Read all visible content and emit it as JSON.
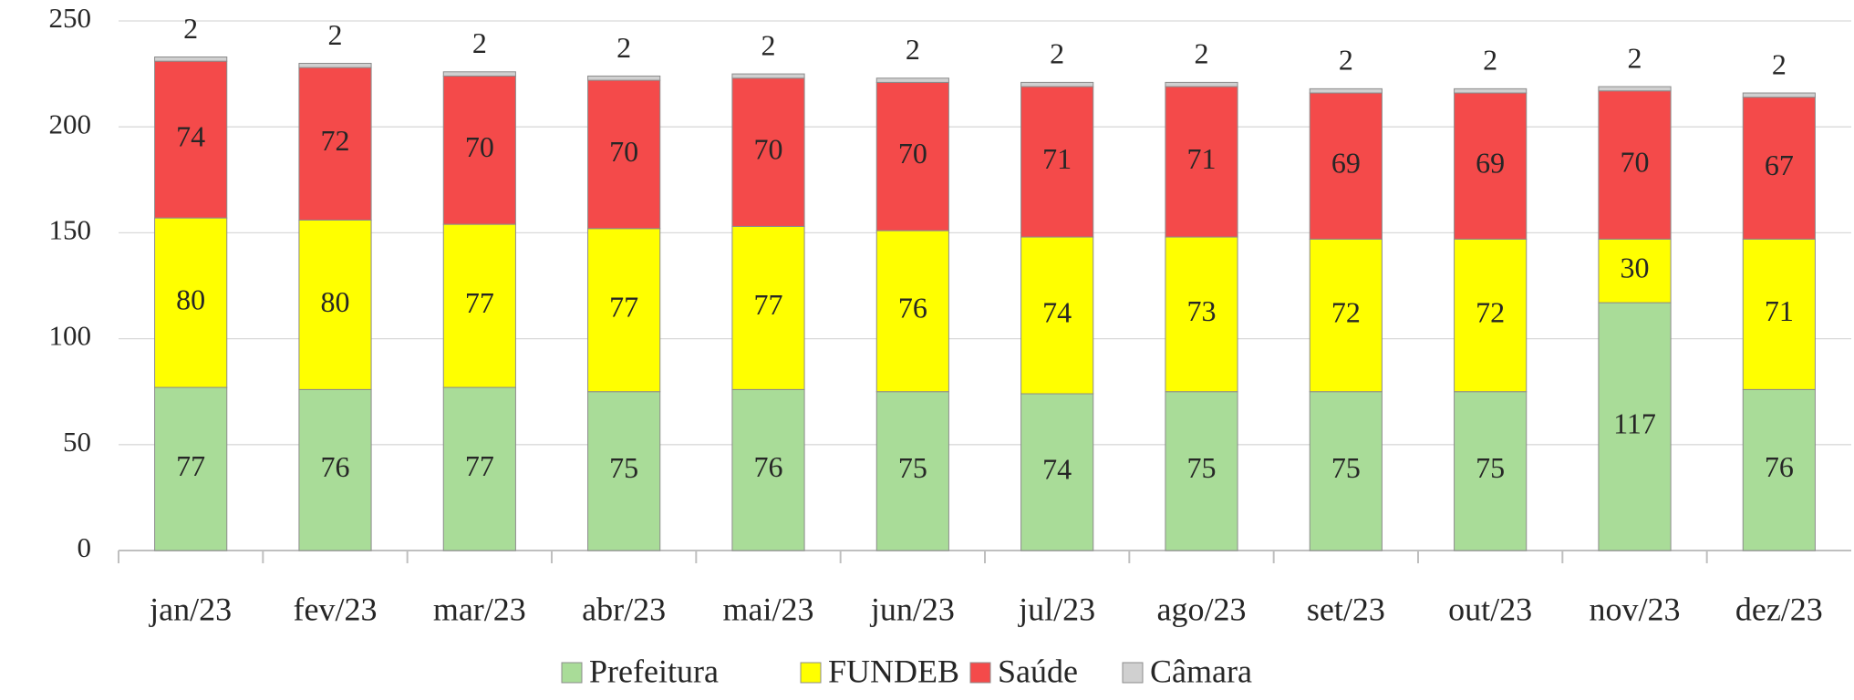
{
  "chart_data": {
    "type": "bar",
    "stacked": true,
    "categories": [
      "jan/23",
      "fev/23",
      "mar/23",
      "abr/23",
      "mai/23",
      "jun/23",
      "jul/23",
      "ago/23",
      "set/23",
      "out/23",
      "nov/23",
      "dez/23"
    ],
    "series": [
      {
        "name": "Prefeitura",
        "color": "#a9dc98",
        "values": [
          77,
          76,
          77,
          75,
          76,
          75,
          74,
          75,
          75,
          75,
          117,
          76
        ]
      },
      {
        "name": "FUNDEB",
        "color": "#ffff00",
        "values": [
          80,
          80,
          77,
          77,
          77,
          76,
          74,
          73,
          72,
          72,
          30,
          71
        ]
      },
      {
        "name": "Saúde",
        "color": "#f44a4a",
        "values": [
          74,
          72,
          70,
          70,
          70,
          70,
          71,
          71,
          69,
          69,
          70,
          67
        ]
      },
      {
        "name": "Câmara",
        "color": "#d0d0d0",
        "values": [
          2,
          2,
          2,
          2,
          2,
          2,
          2,
          2,
          2,
          2,
          2,
          2
        ]
      }
    ],
    "ylim": [
      0,
      250
    ],
    "yticks": [
      0,
      50,
      100,
      150,
      200,
      250
    ],
    "grid": true,
    "legend": "bottom"
  }
}
